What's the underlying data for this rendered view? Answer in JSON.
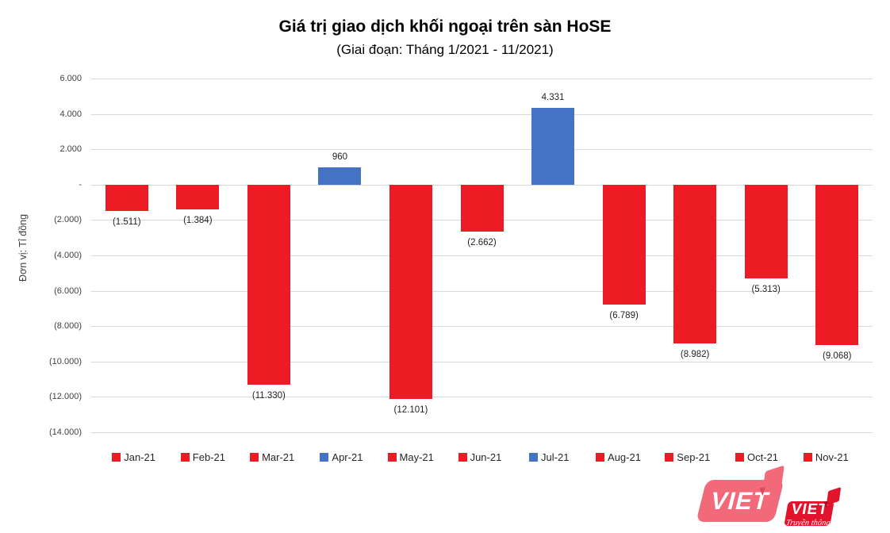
{
  "chart_data": {
    "type": "bar",
    "title": "Giá trị giao dịch khối ngoại trên sàn HoSE",
    "subtitle": "(Giai đoạn: Tháng 1/2021 - 11/2021)",
    "xlabel": "",
    "ylabel": "Đơn vị: Tỉ đồng",
    "ylim": [
      -14000,
      6000
    ],
    "ytick_step": 2000,
    "ytick_labels": [
      "6.000",
      "4.000",
      "2.000",
      "-",
      "(2.000)",
      "(4.000)",
      "(6.000)",
      "(8.000)",
      "(10.000)",
      "(12.000)",
      "(14.000)"
    ],
    "grid": true,
    "legend_position": "bottom",
    "categories": [
      "Jan-21",
      "Feb-21",
      "Mar-21",
      "Apr-21",
      "May-21",
      "Jun-21",
      "Jul-21",
      "Aug-21",
      "Sep-21",
      "Oct-21",
      "Nov-21"
    ],
    "values": [
      -1511,
      -1384,
      -11330,
      960,
      -12101,
      -2662,
      4331,
      -6789,
      -8982,
      -5313,
      -9068
    ],
    "value_labels": [
      "(1.511)",
      "(1.384)",
      "(11.330)",
      "960",
      "(12.101)",
      "(2.662)",
      "4.331",
      "(6.789)",
      "(8.982)",
      "(5.313)",
      "(9.068)"
    ],
    "bar_colors": [
      "#ed1c24",
      "#ed1c24",
      "#ed1c24",
      "#4472c4",
      "#ed1c24",
      "#ed1c24",
      "#4472c4",
      "#ed1c24",
      "#ed1c24",
      "#ed1c24",
      "#ed1c24"
    ],
    "colors": {
      "negative": "#ed1c24",
      "positive": "#4472c4",
      "gridline": "#d9d9d9"
    }
  },
  "logo": {
    "watermark_text": "VIET",
    "badge_text": "VIET",
    "badge_subtext": "Truyền thông"
  }
}
